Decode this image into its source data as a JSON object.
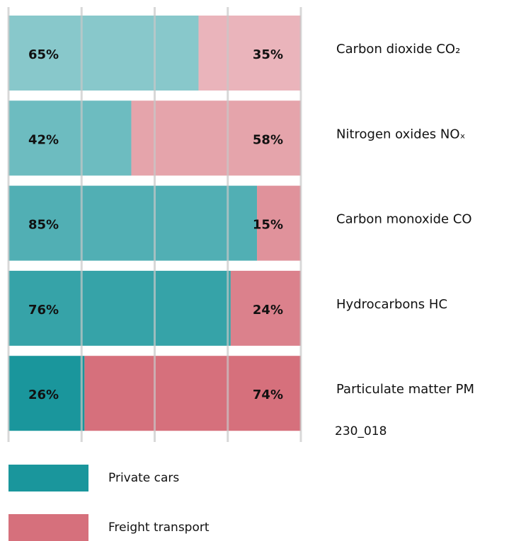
{
  "chart_data": {
    "type": "stacked_bar_horizontal",
    "categories": [
      "Carbon dioxide CO₂",
      "Nitrogen oxides NOₓ",
      "Carbon monoxide CO",
      "Hydrocarbons HC",
      "Particulate matter PM"
    ],
    "series": [
      {
        "name": "Private cars",
        "color": "#1a969c",
        "values": [
          65,
          42,
          85,
          76,
          26
        ],
        "value_labels": [
          "65%",
          "42%",
          "85%",
          "76%",
          "26%"
        ]
      },
      {
        "name": "Freight transport",
        "color": "#d6707c",
        "values": [
          35,
          58,
          15,
          24,
          74
        ],
        "value_labels": [
          "35%",
          "58%",
          "15%",
          "24%",
          "74%"
        ]
      }
    ],
    "xlim": [
      0,
      100
    ],
    "xticks": [
      0,
      25,
      50,
      75,
      100
    ],
    "grid": true,
    "annotation": "230_018"
  }
}
